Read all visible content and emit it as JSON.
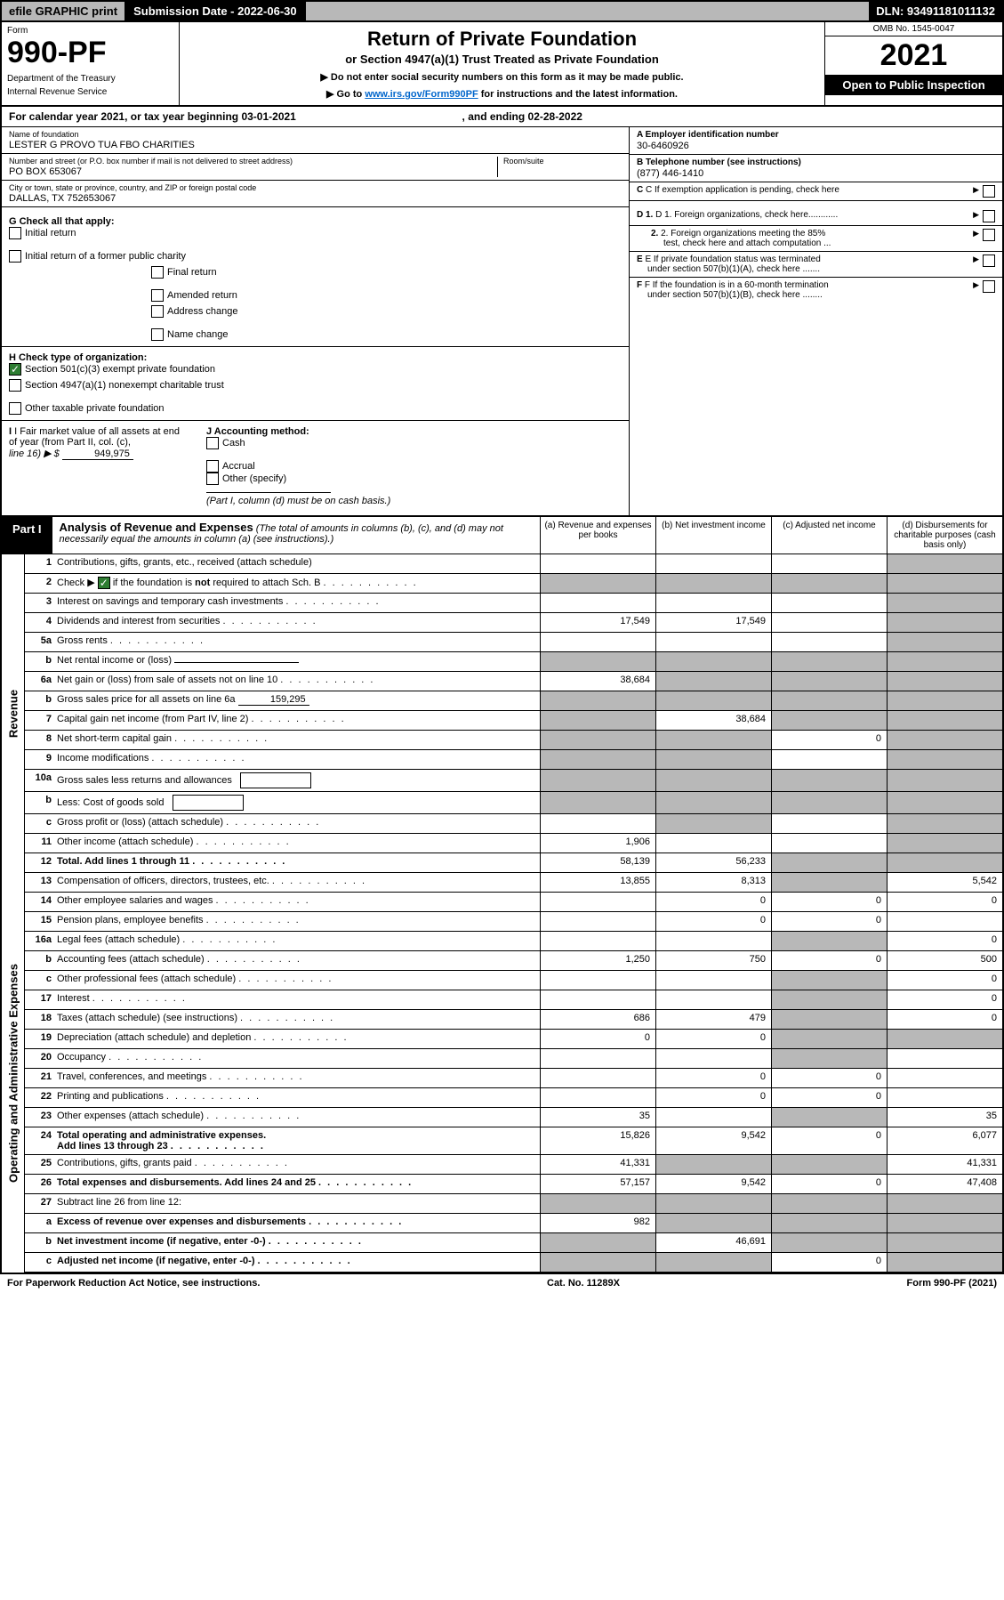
{
  "colors": {
    "black": "#000000",
    "white": "#ffffff",
    "grey_header": "#b8b8b8",
    "grey_cell": "#b8b8b8",
    "green_check": "#2e7d32",
    "link": "#0066cc"
  },
  "topbar": {
    "efile": "efile GRAPHIC print",
    "submission_label": "Submission Date - ",
    "submission_date": "2022-06-30",
    "dln_label": "DLN: ",
    "dln": "93491181011132"
  },
  "header": {
    "form_word": "Form",
    "form_number": "990-PF",
    "dept1": "Department of the Treasury",
    "dept2": "Internal Revenue Service",
    "title": "Return of Private Foundation",
    "subtitle": "or Section 4947(a)(1) Trust Treated as Private Foundation",
    "note1": "▶ Do not enter social security numbers on this form as it may be made public.",
    "note2_pre": "▶ Go to ",
    "note2_link": "www.irs.gov/Form990PF",
    "note2_post": " for instructions and the latest information.",
    "omb": "OMB No. 1545-0047",
    "year": "2021",
    "open": "Open to Public Inspection"
  },
  "cal": {
    "text_a": "For calendar year 2021, or tax year beginning ",
    "begin": "03-01-2021",
    "text_b": " , and ending ",
    "end": "02-28-2022"
  },
  "entity": {
    "name_lbl": "Name of foundation",
    "name": "LESTER G PROVO TUA FBO CHARITIES",
    "addr_lbl": "Number and street (or P.O. box number if mail is not delivered to street address)",
    "addr": "PO BOX 653067",
    "room_lbl": "Room/suite",
    "city_lbl": "City or town, state or province, country, and ZIP or foreign postal code",
    "city": "DALLAS, TX  752653067"
  },
  "right": {
    "a_lbl": "A Employer identification number",
    "a_val": "30-6460926",
    "b_lbl": "B Telephone number (see instructions)",
    "b_val": "(877) 446-1410",
    "c_lbl": "C If exemption application is pending, check here",
    "d1": "D 1. Foreign organizations, check here............",
    "d2a": "2. Foreign organizations meeting the 85%",
    "d2b": "test, check here and attach computation ...",
    "e1": "E  If private foundation status was terminated",
    "e2": "under section 507(b)(1)(A), check here .......",
    "f1": "F  If the foundation is in a 60-month termination",
    "f2": "under section 507(b)(1)(B), check here ........"
  },
  "g": {
    "label": "G Check all that apply:",
    "opts": {
      "initial": "Initial return",
      "initial_pc": "Initial return of a former public charity",
      "final": "Final return",
      "amended": "Amended return",
      "addr": "Address change",
      "name": "Name change"
    }
  },
  "h": {
    "label": "H Check type of organization:",
    "opt1": "Section 501(c)(3) exempt private foundation",
    "opt2": "Section 4947(a)(1) nonexempt charitable trust",
    "opt3": "Other taxable private foundation"
  },
  "i": {
    "label_a": "I Fair market value of all assets at end",
    "label_b": "of year (from Part II, col. (c),",
    "label_c": "line 16) ▶ $",
    "val": "949,975"
  },
  "j": {
    "label": "J Accounting method:",
    "cash": "Cash",
    "accrual": "Accrual",
    "other": "Other (specify)",
    "note": "(Part I, column (d) must be on cash basis.)"
  },
  "part1": {
    "tag": "Part I",
    "title": "Analysis of Revenue and Expenses",
    "note": " (The total of amounts in columns (b), (c), and (d) may not necessarily equal the amounts in column (a) (see instructions).)",
    "cols": {
      "a": "(a)   Revenue and expenses per books",
      "b": "(b)   Net investment income",
      "c": "(c)   Adjusted net income",
      "d": "(d)   Disbursements for charitable purposes (cash basis only)"
    }
  },
  "side": {
    "rev": "Revenue",
    "exp": "Operating and Administrative Expenses"
  },
  "lines": {
    "1": {
      "n": "1",
      "t": "Contributions, gifts, grants, etc., received (attach schedule)"
    },
    "2": {
      "n": "2",
      "t_pre": "Check ▶ ",
      "t_post": " if the foundation is not required to attach Sch. B"
    },
    "3": {
      "n": "3",
      "t": "Interest on savings and temporary cash investments"
    },
    "4": {
      "n": "4",
      "t": "Dividends and interest from securities",
      "a": "17,549",
      "b": "17,549"
    },
    "5a": {
      "n": "5a",
      "t": "Gross rents"
    },
    "5b": {
      "n": "b",
      "t": "Net rental income or (loss)"
    },
    "6a": {
      "n": "6a",
      "t": "Net gain or (loss) from sale of assets not on line 10",
      "a": "38,684"
    },
    "6b": {
      "n": "b",
      "t": "Gross sales price for all assets on line 6a",
      "inline": "159,295"
    },
    "7": {
      "n": "7",
      "t": "Capital gain net income (from Part IV, line 2)",
      "b": "38,684"
    },
    "8": {
      "n": "8",
      "t": "Net short-term capital gain",
      "c": "0"
    },
    "9": {
      "n": "9",
      "t": "Income modifications"
    },
    "10a": {
      "n": "10a",
      "t": "Gross sales less returns and allowances"
    },
    "10b": {
      "n": "b",
      "t": "Less: Cost of goods sold"
    },
    "10c": {
      "n": "c",
      "t": "Gross profit or (loss) (attach schedule)"
    },
    "11": {
      "n": "11",
      "t": "Other income (attach schedule)",
      "a": "1,906"
    },
    "12": {
      "n": "12",
      "t": "Total. Add lines 1 through 11",
      "a": "58,139",
      "b": "56,233",
      "bold": true
    },
    "13": {
      "n": "13",
      "t": "Compensation of officers, directors, trustees, etc.",
      "a": "13,855",
      "b": "8,313",
      "d": "5,542"
    },
    "14": {
      "n": "14",
      "t": "Other employee salaries and wages",
      "b": "0",
      "c": "0",
      "d": "0"
    },
    "15": {
      "n": "15",
      "t": "Pension plans, employee benefits",
      "b": "0",
      "c": "0"
    },
    "16a": {
      "n": "16a",
      "t": "Legal fees (attach schedule)",
      "d": "0"
    },
    "16b": {
      "n": "b",
      "t": "Accounting fees (attach schedule)",
      "a": "1,250",
      "b": "750",
      "c": "0",
      "d": "500"
    },
    "16c": {
      "n": "c",
      "t": "Other professional fees (attach schedule)",
      "d": "0"
    },
    "17": {
      "n": "17",
      "t": "Interest",
      "d": "0"
    },
    "18": {
      "n": "18",
      "t": "Taxes (attach schedule) (see instructions)",
      "a": "686",
      "b": "479",
      "d": "0"
    },
    "19": {
      "n": "19",
      "t": "Depreciation (attach schedule) and depletion",
      "a": "0",
      "b": "0"
    },
    "20": {
      "n": "20",
      "t": "Occupancy"
    },
    "21": {
      "n": "21",
      "t": "Travel, conferences, and meetings",
      "b": "0",
      "c": "0"
    },
    "22": {
      "n": "22",
      "t": "Printing and publications",
      "b": "0",
      "c": "0"
    },
    "23": {
      "n": "23",
      "t": "Other expenses (attach schedule)",
      "a": "35",
      "d": "35"
    },
    "24": {
      "n": "24",
      "t": "Total operating and administrative expenses.",
      "t2": "Add lines 13 through 23",
      "a": "15,826",
      "b": "9,542",
      "c": "0",
      "d": "6,077",
      "bold": true
    },
    "25": {
      "n": "25",
      "t": "Contributions, gifts, grants paid",
      "a": "41,331",
      "d": "41,331"
    },
    "26": {
      "n": "26",
      "t": "Total expenses and disbursements. Add lines 24 and 25",
      "a": "57,157",
      "b": "9,542",
      "c": "0",
      "d": "47,408",
      "bold": true
    },
    "27": {
      "n": "27",
      "t": "Subtract line 26 from line 12:"
    },
    "27a": {
      "n": "a",
      "t": "Excess of revenue over expenses and disbursements",
      "a": "982",
      "bold": true
    },
    "27b": {
      "n": "b",
      "t": "Net investment income (if negative, enter -0-)",
      "b": "46,691",
      "bold": true
    },
    "27c": {
      "n": "c",
      "t": "Adjusted net income (if negative, enter -0-)",
      "c": "0",
      "bold": true
    }
  },
  "greymap": {
    "1": [
      "d"
    ],
    "2": [
      "a",
      "b",
      "c",
      "d"
    ],
    "3": [
      "d"
    ],
    "4": [
      "d"
    ],
    "5a": [
      "d"
    ],
    "5b": [
      "a",
      "b",
      "c",
      "d"
    ],
    "6a": [
      "b",
      "c",
      "d"
    ],
    "6b": [
      "a",
      "b",
      "c",
      "d"
    ],
    "7": [
      "a",
      "c",
      "d"
    ],
    "8": [
      "a",
      "b",
      "d"
    ],
    "9": [
      "a",
      "b",
      "d"
    ],
    "10a": [
      "a",
      "b",
      "c",
      "d"
    ],
    "10b": [
      "a",
      "b",
      "c",
      "d"
    ],
    "10c": [
      "b",
      "d"
    ],
    "11": [
      "d"
    ],
    "12": [
      "c",
      "d"
    ],
    "13": [
      "c"
    ],
    "16a": [
      "c"
    ],
    "16c": [
      "c"
    ],
    "17": [
      "c"
    ],
    "18": [
      "c"
    ],
    "19": [
      "c",
      "d"
    ],
    "20": [
      "c"
    ],
    "23": [
      "c"
    ],
    "25": [
      "b",
      "c"
    ],
    "27": [
      "a",
      "b",
      "c",
      "d"
    ],
    "27a": [
      "b",
      "c",
      "d"
    ],
    "27b": [
      "a",
      "c",
      "d"
    ],
    "27c": [
      "a",
      "b",
      "d"
    ]
  },
  "footer": {
    "left": "For Paperwork Reduction Act Notice, see instructions.",
    "mid": "Cat. No. 11289X",
    "right": "Form 990-PF (2021)"
  }
}
